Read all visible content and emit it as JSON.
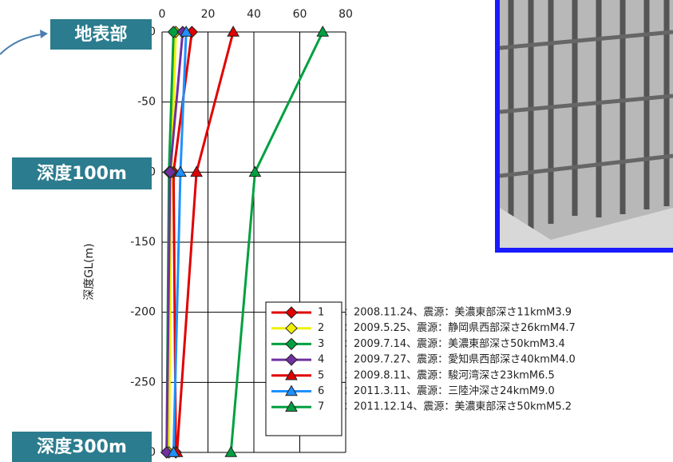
{
  "chart_data": {
    "type": "line",
    "y_label": "深度GL(m)",
    "depths": [
      0,
      -100,
      -300
    ],
    "xlim": [
      0,
      80
    ],
    "xticks": [
      0,
      20,
      40,
      60,
      80
    ],
    "ylim": [
      -300,
      0
    ],
    "yticks": [
      0,
      -50,
      -100,
      -150,
      -200,
      -250,
      -300
    ],
    "grid": true,
    "depth_labels": [
      "地表部",
      "深度100m",
      "深度300m"
    ],
    "series": [
      {
        "name": "1",
        "marker": "diamond",
        "color": "#e00000",
        "values": [
          13,
          5,
          6
        ],
        "description": "：2008.11.24、震源：美濃東部深さ11kmM3.9"
      },
      {
        "name": "2",
        "marker": "diamond",
        "color": "#f0f000",
        "values": [
          6,
          4,
          3
        ],
        "description": "：2009.5.25、震源：静岡県西部深さ26kmM4.7"
      },
      {
        "name": "3",
        "marker": "diamond",
        "color": "#00a040",
        "values": [
          5,
          3,
          2
        ],
        "description": "：2009.7.14、震源：美濃東部深さ50kmM3.4"
      },
      {
        "name": "4",
        "marker": "diamond",
        "color": "#7030a0",
        "values": [
          9,
          3.5,
          2
        ],
        "description": "：2009.7.27、震源：愛知県西部深さ40kmM4.0"
      },
      {
        "name": "5",
        "marker": "triangle",
        "color": "#e00000",
        "values": [
          31,
          15,
          6.5
        ],
        "description": "：2009.8.11、震源：駿河湾深さ23kmM6.5"
      },
      {
        "name": "6",
        "marker": "triangle",
        "color": "#1e90ff",
        "values": [
          10.5,
          8,
          5
        ],
        "description": "：2011.3.11、震源：三陸沖深さ24kmM9.0"
      },
      {
        "name": "7",
        "marker": "triangle",
        "color": "#00a040",
        "values": [
          70,
          40.5,
          30
        ],
        "description": "：2011.12.14、震源：美濃東部深さ50kmM5.2"
      }
    ]
  }
}
